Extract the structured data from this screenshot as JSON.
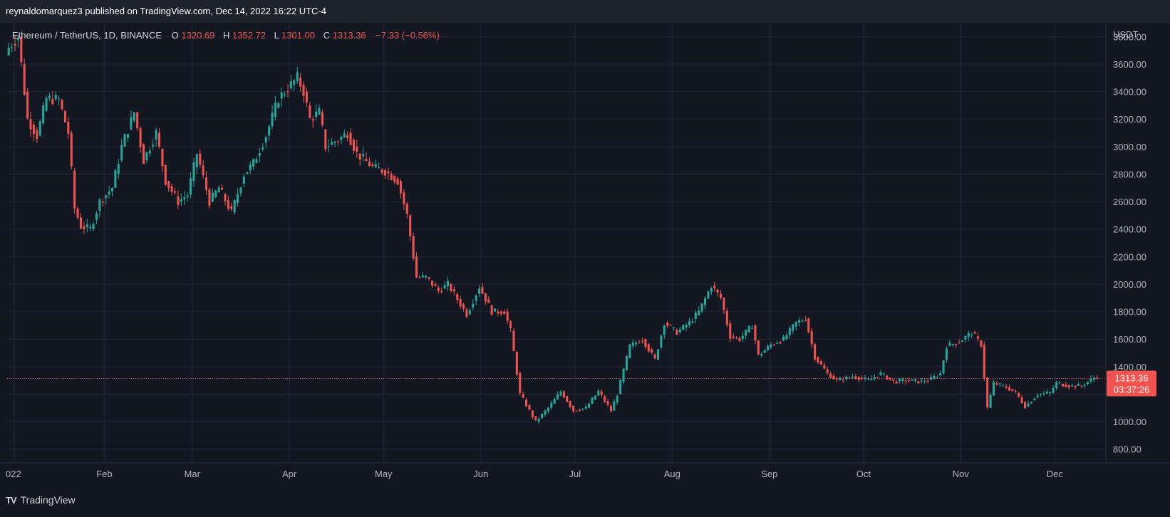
{
  "header": {
    "published_text": "reynaldomarquez3 published on TradingView.com, Dec 14, 2022 16:22 UTC-4"
  },
  "footer": {
    "logo_glyph": "TV",
    "brand": "TradingView"
  },
  "colors": {
    "background": "#131722",
    "header_background": "#1e222d",
    "grid": "#232734",
    "up": "#26a69a",
    "down": "#ef5350",
    "axis_text": "#b2b5be",
    "price_label_bg": "#f05350"
  },
  "chart_data": {
    "type": "candlestick",
    "symbol_line": {
      "pair": "Ethereum / TetherUS, 1D, BINANCE",
      "o_label": "O",
      "o_value": "1320.69",
      "h_label": "H",
      "h_value": "1352.72",
      "l_label": "L",
      "l_value": "1301.00",
      "c_label": "C",
      "c_value": "1313.36",
      "change": "−7.33 (−0.56%)"
    },
    "currency_label": "USDT",
    "last_price_label": "1313.36",
    "countdown_label": "03:37:26",
    "last_price": 1313.36,
    "ylim": [
      700,
      3900
    ],
    "yticks": [
      800,
      1000,
      1200,
      1400,
      1600,
      1800,
      2000,
      2200,
      2400,
      2600,
      2800,
      3000,
      3200,
      3400,
      3600,
      3800
    ],
    "ytick_labels": [
      "800.00",
      "1000.00",
      "",
      "1400.00",
      "1600.00",
      "1800.00",
      "2000.00",
      "2200.00",
      "2400.00",
      "2600.00",
      "2800.00",
      "3000.00",
      "3200.00",
      "3400.00",
      "3600.00",
      "3800.00"
    ],
    "x_start": "2022-01-01",
    "x_end": "2022-12-14",
    "xticks": [
      {
        "date": "2022-01-01",
        "label": "022"
      },
      {
        "date": "2022-02-01",
        "label": "Feb"
      },
      {
        "date": "2022-03-01",
        "label": "Mar"
      },
      {
        "date": "2022-04-01",
        "label": "Apr"
      },
      {
        "date": "2022-05-01",
        "label": "May"
      },
      {
        "date": "2022-06-01",
        "label": "Jun"
      },
      {
        "date": "2022-07-01",
        "label": "Jul"
      },
      {
        "date": "2022-08-01",
        "label": "Aug"
      },
      {
        "date": "2022-09-01",
        "label": "Sep"
      },
      {
        "date": "2022-10-01",
        "label": "Oct"
      },
      {
        "date": "2022-11-01",
        "label": "Nov"
      },
      {
        "date": "2022-12-01",
        "label": "Dec"
      }
    ],
    "close_anchors": [
      [
        "2022-01-01",
        3720
      ],
      [
        "2022-01-04",
        3800
      ],
      [
        "2022-01-07",
        3200
      ],
      [
        "2022-01-10",
        3080
      ],
      [
        "2022-01-13",
        3350
      ],
      [
        "2022-01-17",
        3340
      ],
      [
        "2022-01-20",
        3100
      ],
      [
        "2022-01-22",
        2550
      ],
      [
        "2022-01-24",
        2420
      ],
      [
        "2022-01-27",
        2400
      ],
      [
        "2022-01-30",
        2600
      ],
      [
        "2022-02-03",
        2700
      ],
      [
        "2022-02-06",
        3000
      ],
      [
        "2022-02-10",
        3250
      ],
      [
        "2022-02-13",
        2900
      ],
      [
        "2022-02-17",
        3100
      ],
      [
        "2022-02-20",
        2750
      ],
      [
        "2022-02-24",
        2600
      ],
      [
        "2022-02-27",
        2650
      ],
      [
        "2022-03-02",
        2950
      ],
      [
        "2022-03-06",
        2600
      ],
      [
        "2022-03-09",
        2700
      ],
      [
        "2022-03-13",
        2520
      ],
      [
        "2022-03-17",
        2800
      ],
      [
        "2022-03-20",
        2880
      ],
      [
        "2022-03-24",
        3080
      ],
      [
        "2022-03-28",
        3350
      ],
      [
        "2022-04-03",
        3500
      ],
      [
        "2022-04-05",
        3400
      ],
      [
        "2022-04-07",
        3200
      ],
      [
        "2022-04-10",
        3250
      ],
      [
        "2022-04-12",
        3000
      ],
      [
        "2022-04-16",
        3050
      ],
      [
        "2022-04-19",
        3100
      ],
      [
        "2022-04-22",
        2950
      ],
      [
        "2022-04-27",
        2850
      ],
      [
        "2022-05-01",
        2820
      ],
      [
        "2022-05-05",
        2750
      ],
      [
        "2022-05-08",
        2500
      ],
      [
        "2022-05-11",
        2050
      ],
      [
        "2022-05-14",
        2050
      ],
      [
        "2022-05-18",
        1950
      ],
      [
        "2022-05-21",
        2000
      ],
      [
        "2022-05-27",
        1780
      ],
      [
        "2022-05-31",
        1980
      ],
      [
        "2022-06-04",
        1800
      ],
      [
        "2022-06-08",
        1800
      ],
      [
        "2022-06-10",
        1660
      ],
      [
        "2022-06-13",
        1200
      ],
      [
        "2022-06-16",
        1080
      ],
      [
        "2022-06-18",
        1000
      ],
      [
        "2022-06-22",
        1100
      ],
      [
        "2022-06-26",
        1220
      ],
      [
        "2022-06-30",
        1080
      ],
      [
        "2022-07-04",
        1100
      ],
      [
        "2022-07-08",
        1220
      ],
      [
        "2022-07-12",
        1080
      ],
      [
        "2022-07-14",
        1200
      ],
      [
        "2022-07-18",
        1550
      ],
      [
        "2022-07-22",
        1600
      ],
      [
        "2022-07-26",
        1450
      ],
      [
        "2022-07-29",
        1720
      ],
      [
        "2022-08-02",
        1650
      ],
      [
        "2022-08-06",
        1720
      ],
      [
        "2022-08-09",
        1800
      ],
      [
        "2022-08-13",
        1990
      ],
      [
        "2022-08-16",
        1900
      ],
      [
        "2022-08-19",
        1620
      ],
      [
        "2022-08-22",
        1600
      ],
      [
        "2022-08-26",
        1700
      ],
      [
        "2022-08-28",
        1480
      ],
      [
        "2022-09-01",
        1560
      ],
      [
        "2022-09-05",
        1600
      ],
      [
        "2022-09-09",
        1720
      ],
      [
        "2022-09-12",
        1750
      ],
      [
        "2022-09-15",
        1470
      ],
      [
        "2022-09-19",
        1350
      ],
      [
        "2022-09-22",
        1300
      ],
      [
        "2022-09-27",
        1330
      ],
      [
        "2022-10-02",
        1300
      ],
      [
        "2022-10-06",
        1350
      ],
      [
        "2022-10-10",
        1290
      ],
      [
        "2022-10-14",
        1300
      ],
      [
        "2022-10-19",
        1290
      ],
      [
        "2022-10-22",
        1310
      ],
      [
        "2022-10-25",
        1350
      ],
      [
        "2022-10-27",
        1550
      ],
      [
        "2022-10-31",
        1580
      ],
      [
        "2022-11-04",
        1650
      ],
      [
        "2022-11-07",
        1560
      ],
      [
        "2022-11-08",
        1320
      ],
      [
        "2022-11-09",
        1100
      ],
      [
        "2022-11-11",
        1280
      ],
      [
        "2022-11-15",
        1250
      ],
      [
        "2022-11-18",
        1210
      ],
      [
        "2022-11-21",
        1110
      ],
      [
        "2022-11-25",
        1200
      ],
      [
        "2022-11-29",
        1210
      ],
      [
        "2022-12-01",
        1280
      ],
      [
        "2022-12-05",
        1260
      ],
      [
        "2022-12-09",
        1260
      ],
      [
        "2022-12-13",
        1320
      ],
      [
        "2022-12-14",
        1313.36
      ]
    ]
  }
}
